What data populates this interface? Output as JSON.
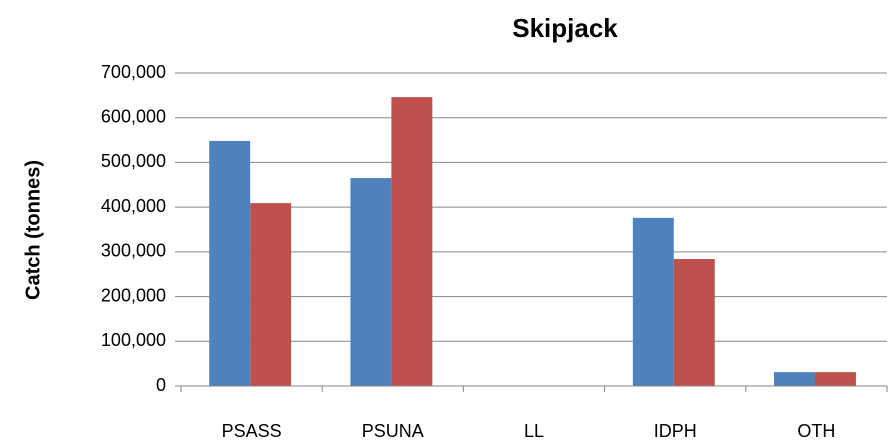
{
  "chart_data": {
    "type": "bar",
    "title": "Skipjack",
    "y_label": "Catch (tonnes)",
    "categories": [
      "PSASS",
      "PSUNA",
      "LL",
      "IDPH",
      "OTH"
    ],
    "series": [
      {
        "color": "#4f81bd",
        "values": [
          548000,
          465000,
          0,
          376000,
          31000
        ]
      },
      {
        "color": "#c0504d",
        "values": [
          409000,
          646000,
          0,
          284000,
          31000
        ]
      }
    ],
    "ylim": [
      0,
      700000
    ],
    "yticks": [
      0,
      {
        "value": 100000,
        "label": "100,000"
      },
      {
        "value": 200000,
        "label": "200,000"
      },
      {
        "value": 300000,
        "label": "300,000"
      },
      {
        "value": 400000,
        "label": "400,000"
      },
      {
        "value": 500000,
        "label": "500,000"
      },
      {
        "value": 600000,
        "label": "600,000"
      },
      {
        "value": 700000,
        "label": "700,000"
      }
    ],
    "grid": true
  }
}
